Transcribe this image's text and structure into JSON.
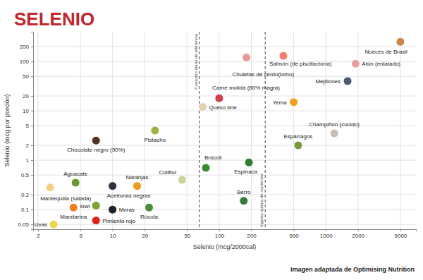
{
  "chart_data": {
    "type": "scatter",
    "title": "SELENIO",
    "x_label": "Selenio (mcg/2000cal)",
    "y_label": "Selenio (mcg por porción)",
    "source": "Imagen adaptada de Optimising Nutrition",
    "log": true,
    "grid": true,
    "xlim": [
      1.8,
      7000
    ],
    "ylim": [
      0.04,
      400
    ],
    "xticks": [
      2,
      5,
      10,
      20,
      50,
      100,
      200,
      500,
      1000,
      2000,
      5000
    ],
    "yticks": [
      0.05,
      0.1,
      0.2,
      0.5,
      1,
      2,
      5,
      10,
      20,
      50,
      100,
      200
    ],
    "annotations": [
      {
        "x": 65,
        "label": "Consumo diario de referencia"
      },
      {
        "x": 270,
        "label": "Ingesta óptima de nutrientes"
      }
    ],
    "labels": [
      "Nueces de Brasil",
      "Atún (enlatado)",
      "Mejillones",
      "Salmón (de piscifactoría)",
      "Chuletas de cerdo(lomo)",
      "Carne molida (80% magra)",
      "Queso brie",
      "Yema",
      "Champiñón (cocido)",
      "Espárragos",
      "Pistacho",
      "Chocolate negro (90%)",
      "Brócoli",
      "Espinaca",
      "Coliflor",
      "Berro",
      "Naranjas",
      "Aguacate",
      "Mantequilla (salada)",
      "Aceitunas negras",
      "kiwi",
      "Moras",
      "Mandarina",
      "Rúcula",
      "Pimiento rojo",
      "Uvas"
    ],
    "x": [
      5000,
      1900,
      1600,
      400,
      180,
      100,
      70,
      500,
      1200,
      550,
      25,
      7,
      75,
      190,
      45,
      170,
      17,
      4.5,
      2.6,
      10,
      7,
      10,
      4.3,
      22,
      7,
      2.8
    ],
    "values": [
      250,
      90,
      40,
      130,
      120,
      18,
      12,
      15,
      3.5,
      2,
      4,
      2.5,
      0.7,
      0.9,
      0.4,
      0.15,
      0.3,
      0.35,
      0.28,
      0.3,
      0.12,
      0.1,
      0.11,
      0.11,
      0.06,
      0.05
    ],
    "colors": [
      "#c8874a",
      "#e8a0a0",
      "#4a5a6a",
      "#f08070",
      "#e89a9a",
      "#d04050",
      "#e0d4b0",
      "#f0a020",
      "#c8beb2",
      "#7a9a40",
      "#a0b040",
      "#5a3020",
      "#3a8a30",
      "#2e7d32",
      "#c8d49a",
      "#3a7a3a",
      "#f09a20",
      "#6a9a30",
      "#f0d080",
      "#303040",
      "#80a030",
      "#202030",
      "#f08020",
      "#4a8a3a",
      "#e02020",
      "#e8d850"
    ]
  }
}
